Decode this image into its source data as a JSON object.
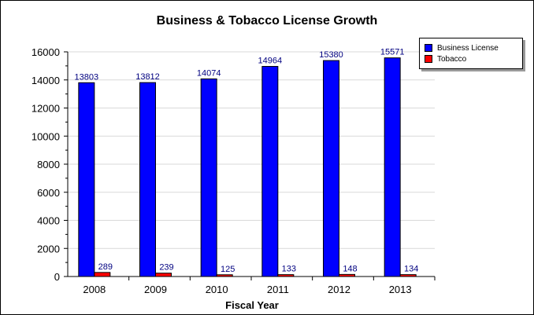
{
  "chart_data": {
    "type": "bar",
    "title": "Business & Tobacco License Growth",
    "xlabel": "Fiscal Year",
    "ylabel": "",
    "categories": [
      "2008",
      "2009",
      "2010",
      "2011",
      "2012",
      "2013"
    ],
    "series": [
      {
        "name": "Business License",
        "color": "#0000ff",
        "values": [
          13803,
          13812,
          14074,
          14964,
          15380,
          15571
        ]
      },
      {
        "name": "Tobacco",
        "color": "#ff0000",
        "values": [
          289,
          239,
          125,
          133,
          148,
          134
        ]
      }
    ],
    "ylim": [
      0,
      16000
    ],
    "yticks": [
      0,
      2000,
      4000,
      6000,
      8000,
      10000,
      12000,
      14000,
      16000
    ],
    "grid": true,
    "legend": "top-right",
    "data_label_color": "#000080"
  }
}
